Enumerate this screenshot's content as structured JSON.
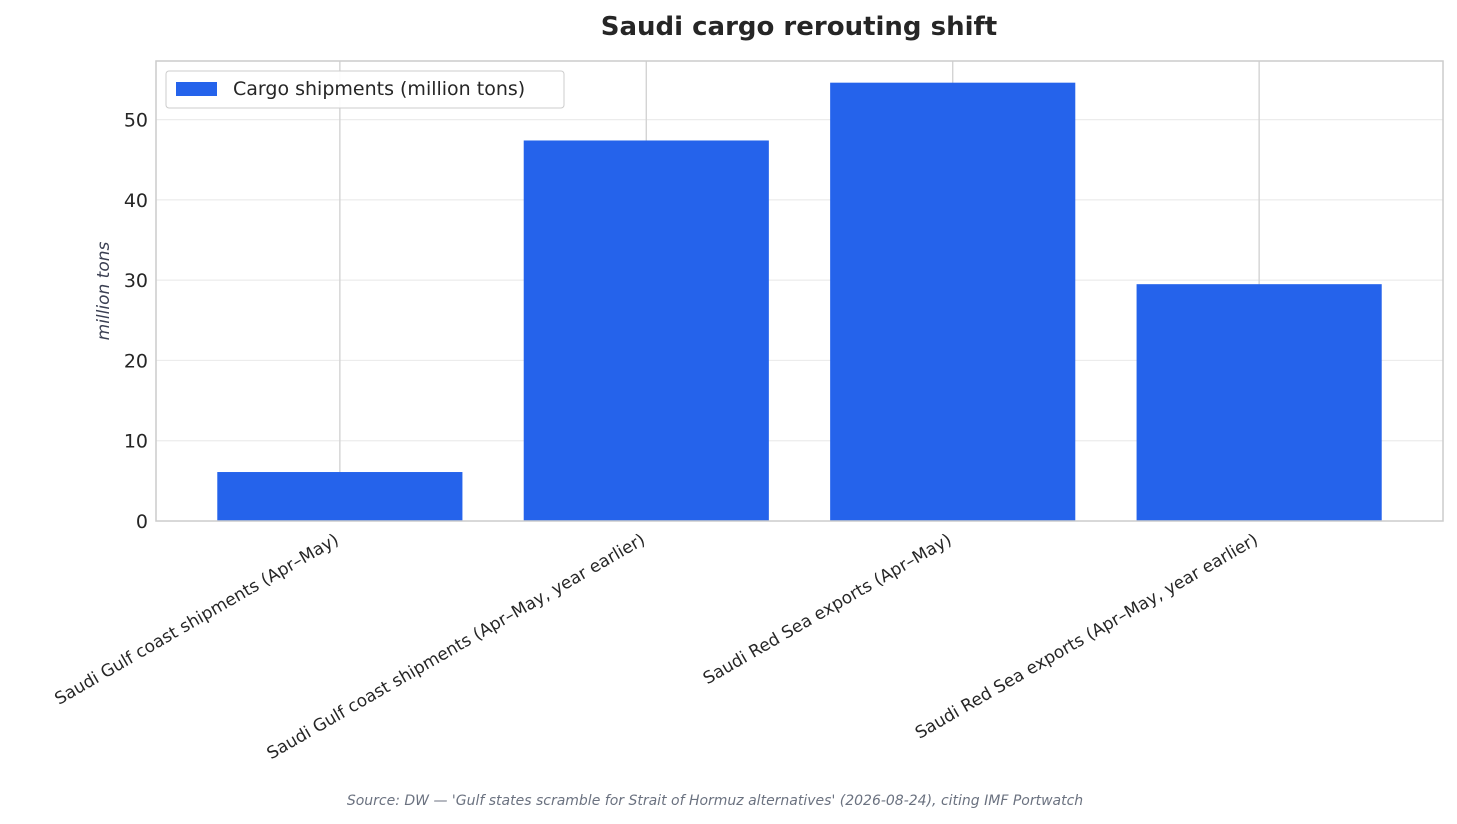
{
  "chart_data": {
    "type": "bar",
    "title": "Saudi cargo rerouting shift",
    "ylabel": "million tons",
    "xlabel": "",
    "categories": [
      "Saudi Gulf coast shipments (Apr–May)",
      "Saudi Gulf coast shipments (Apr–May, year earlier)",
      "Saudi Red Sea exports (Apr–May)",
      "Saudi Red Sea exports (Apr–May, year earlier)"
    ],
    "series": [
      {
        "name": "Cargo shipments (million tons)",
        "values": [
          6.1,
          47.4,
          54.6,
          29.5
        ],
        "color": "#2563eb"
      }
    ],
    "ylim": [
      0,
      57.3
    ],
    "yticks": [
      0,
      10,
      20,
      30,
      40,
      50
    ],
    "ytick_labels": [
      "0",
      "10",
      "20",
      "30",
      "40",
      "50"
    ],
    "grid": true,
    "legend_position": "top-left",
    "source": "Source: DW — 'Gulf states scramble for Strait of Hormuz alternatives' (2026-08-24), citing IMF Portwatch"
  }
}
